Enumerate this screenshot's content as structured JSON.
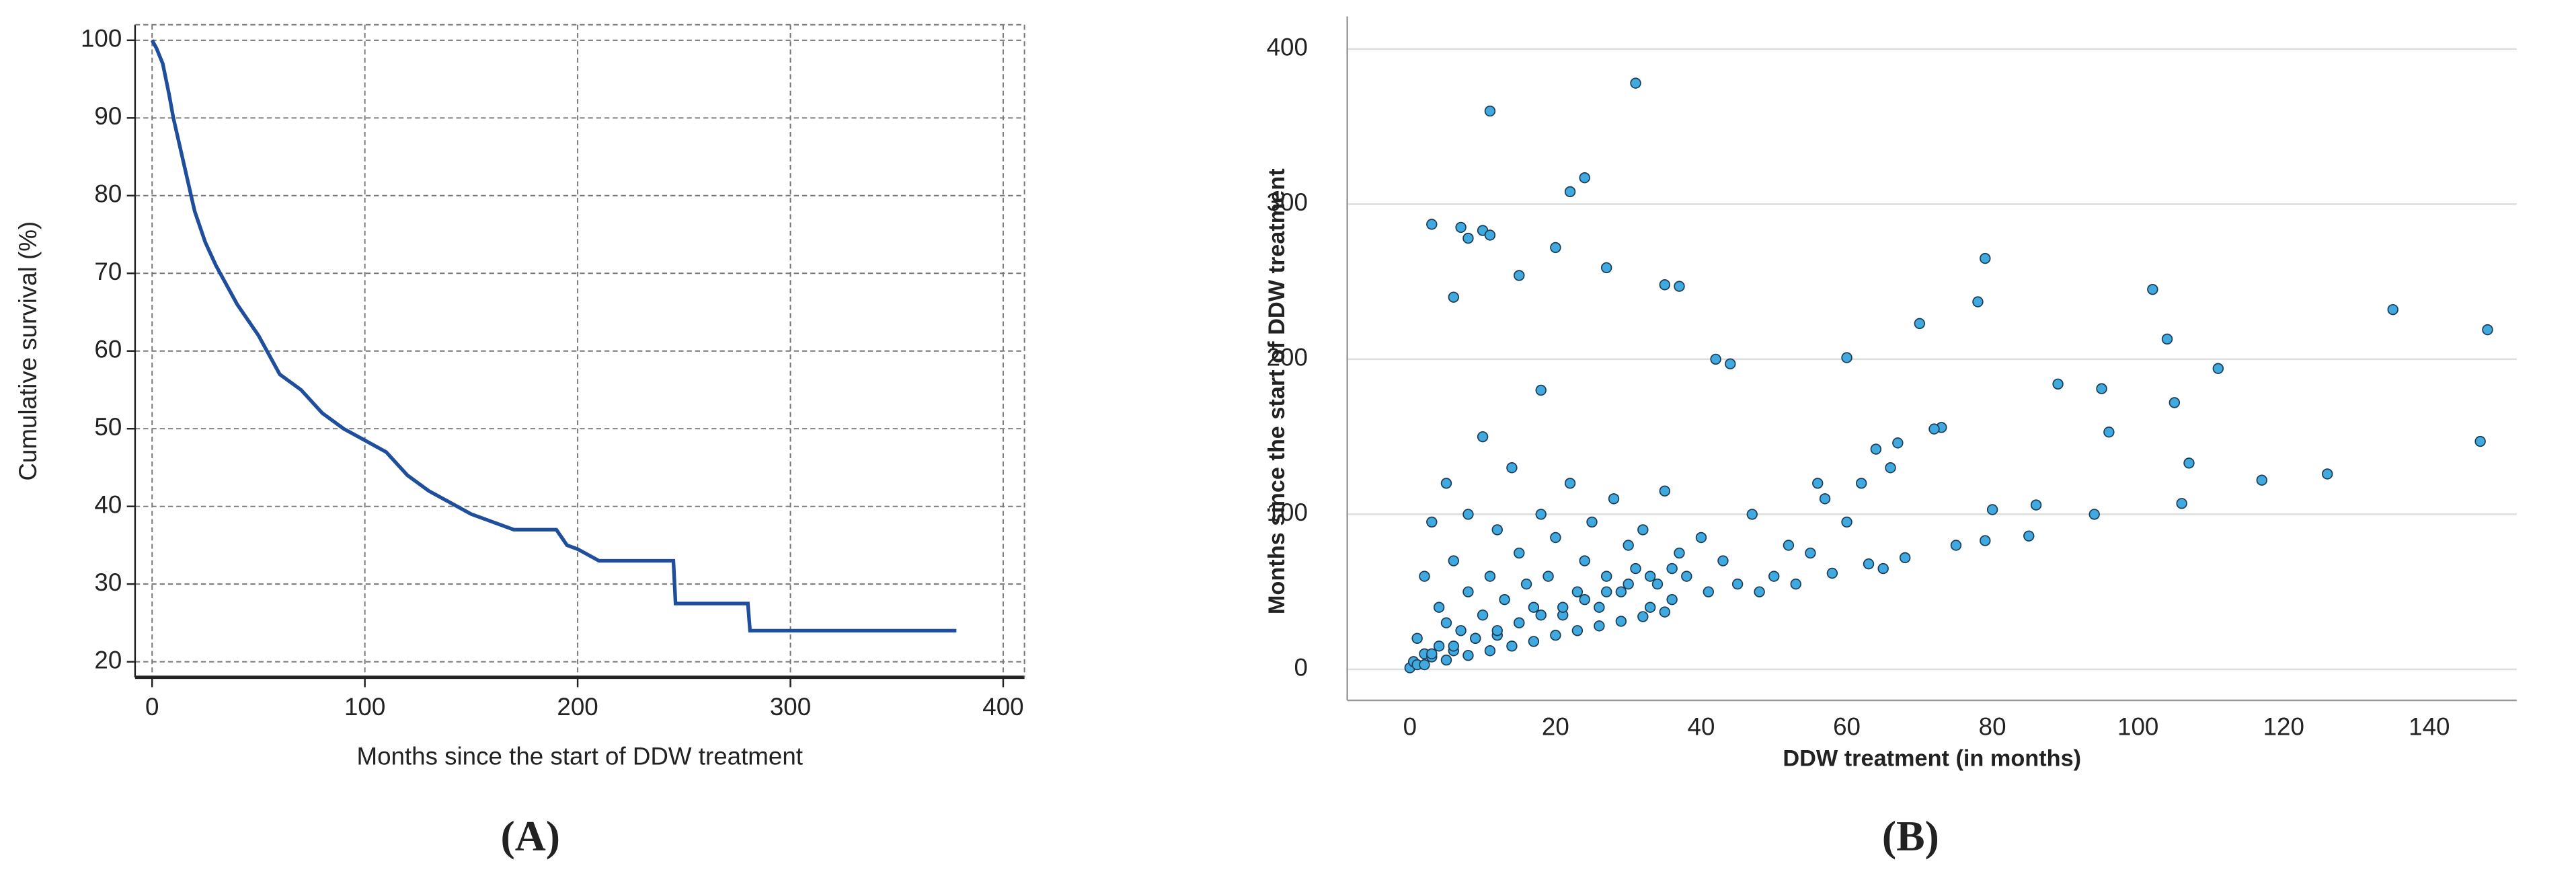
{
  "chart_data": [
    {
      "type": "line",
      "panel_label": "(A)",
      "xlabel": "Months since the start of DDW treatment",
      "ylabel": "Cumulative survival (%)",
      "xlim": [
        -8,
        410
      ],
      "ylim": [
        18,
        102
      ],
      "xticks": [
        0,
        100,
        200,
        300,
        400
      ],
      "yticks": [
        20,
        30,
        40,
        50,
        60,
        70,
        80,
        90,
        100
      ],
      "grid": true,
      "series": [
        {
          "color": "#1f4e9c",
          "x": [
            0,
            2,
            5,
            8,
            10,
            15,
            20,
            25,
            30,
            40,
            50,
            60,
            70,
            80,
            90,
            100,
            110,
            120,
            130,
            140,
            150,
            160,
            170,
            190,
            195,
            200,
            210,
            245,
            246,
            280,
            281,
            378
          ],
          "values": [
            100,
            99,
            97,
            93,
            90,
            84,
            78,
            74,
            71,
            66,
            62,
            57,
            55,
            52,
            50,
            48.5,
            47,
            44,
            42,
            40.5,
            39,
            38,
            37,
            37,
            35,
            34.5,
            33,
            33,
            27.5,
            27.5,
            24,
            24
          ]
        }
      ]
    },
    {
      "type": "scatter",
      "panel_label": "(B)",
      "xlabel": "DDW treatment (in months)",
      "ylabel": "Months since the start of DDW treatment",
      "xlim": [
        -8.6,
        152
      ],
      "ylim": [
        -20,
        421
      ],
      "xticks": [
        0,
        20,
        40,
        60,
        80,
        100,
        120,
        140
      ],
      "yticks": [
        0,
        100,
        200,
        300,
        400
      ],
      "grid": true,
      "series": [
        {
          "color": "#3fa9e0",
          "x": [
            31,
            11,
            3,
            7,
            10,
            8,
            22,
            24,
            11,
            35,
            37,
            27,
            20,
            15,
            6,
            79,
            78,
            102,
            135,
            148,
            104,
            111,
            95,
            105,
            89,
            70,
            60,
            42,
            44,
            117,
            126,
            107,
            106,
            94,
            147,
            79,
            86,
            85,
            80,
            73,
            72,
            96,
            64,
            67,
            66,
            56,
            0,
            0.5,
            1,
            1,
            2,
            2,
            3,
            3,
            4,
            4,
            5,
            5,
            6,
            6,
            7,
            8,
            8,
            9,
            10,
            10,
            11,
            12,
            12,
            13,
            14,
            15,
            15,
            16,
            17,
            18,
            18,
            19,
            20,
            21,
            22,
            23,
            24,
            25,
            26,
            27,
            28,
            29,
            30,
            31,
            32,
            33,
            34,
            35,
            36,
            37,
            38,
            40,
            41,
            43,
            45,
            47,
            50,
            52,
            55,
            57,
            60,
            62,
            65,
            2,
            5,
            8,
            11,
            14,
            17,
            20,
            23,
            26,
            29,
            32,
            35,
            3,
            6,
            9,
            12,
            15,
            18,
            21,
            24,
            27,
            30,
            33,
            36,
            48,
            53,
            58,
            63,
            68,
            75
          ],
          "values": [
            378,
            360,
            287,
            285,
            283,
            278,
            308,
            317,
            280,
            248,
            247,
            259,
            272,
            254,
            240,
            265,
            237,
            245,
            232,
            219,
            213,
            194,
            181,
            172,
            184,
            223,
            201,
            200,
            197,
            122,
            126,
            133,
            107,
            100,
            147,
            83,
            106,
            86,
            103,
            156,
            155,
            153,
            142,
            146,
            130,
            120,
            1,
            5,
            3,
            20,
            10,
            60,
            8,
            95,
            15,
            40,
            30,
            120,
            12,
            70,
            25,
            50,
            100,
            20,
            35,
            150,
            60,
            22,
            90,
            45,
            130,
            30,
            75,
            55,
            40,
            180,
            100,
            60,
            85,
            35,
            120,
            50,
            70,
            95,
            40,
            60,
            110,
            50,
            80,
            65,
            90,
            40,
            55,
            115,
            45,
            75,
            60,
            85,
            50,
            70,
            55,
            100,
            60,
            80,
            75,
            110,
            95,
            120,
            65,
            3,
            6,
            9,
            12,
            15,
            18,
            22,
            25,
            28,
            31,
            34,
            37,
            10,
            15,
            20,
            25,
            30,
            35,
            40,
            45,
            50,
            55,
            60,
            65,
            50,
            55,
            62,
            68,
            72,
            80
          ]
        }
      ]
    }
  ]
}
